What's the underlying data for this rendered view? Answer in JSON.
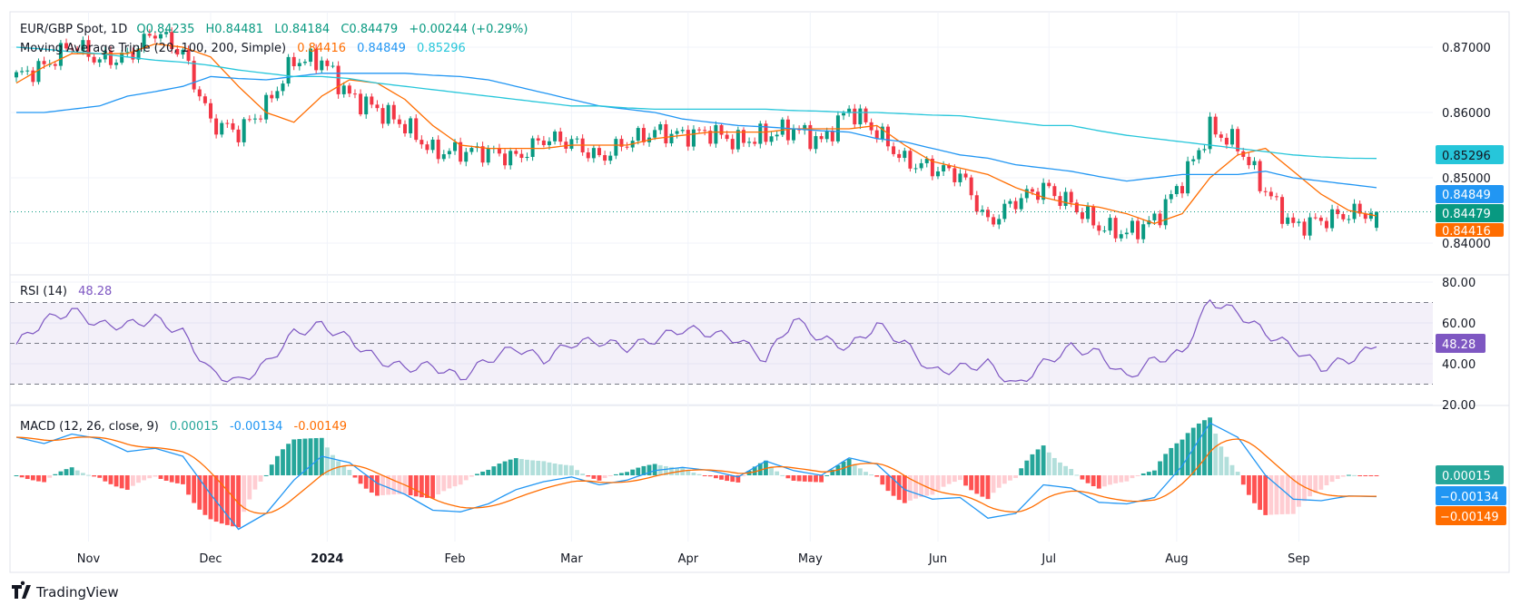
{
  "header": {
    "symbol": "EUR/GBP Spot, 1D",
    "open_label": "O",
    "open": "0.84235",
    "high_label": "H",
    "high": "0.84481",
    "low_label": "L",
    "low": "0.84184",
    "close_label": "C",
    "close": "0.84479",
    "change": "+0.00244 (+0.29%)"
  },
  "ma_legend": {
    "title": "Moving Average Triple (20, 100, 200, Simple)",
    "ma20": "0.84416",
    "ma100": "0.84849",
    "ma200": "0.85296"
  },
  "rsi_legend": {
    "title": "RSI (14)",
    "value": "48.28"
  },
  "macd_legend": {
    "title": "MACD (12, 26, close, 9)",
    "hist": "0.00015",
    "macd": "-0.00134",
    "signal": "-0.00149"
  },
  "price_tags": {
    "ma200": "0.85296",
    "ma100": "0.84849",
    "close": "0.84479",
    "ma20": "0.84416"
  },
  "rsi_tag": "48.28",
  "macd_tags": {
    "hist": "0.00015",
    "macd": "−0.00134",
    "signal": "−0.00149"
  },
  "brand": "TradingView",
  "colors": {
    "up": "#089981",
    "down": "#f23645",
    "ma20": "#ff6d00",
    "ma100": "#2196f3",
    "ma200": "#26c6da",
    "rsi": "#7e57c2",
    "macd": "#2196f3",
    "signal": "#ff6d00",
    "hist_up": "#26a69a",
    "hist_up_light": "#b2dfdb",
    "hist_down": "#ff5252",
    "hist_down_light": "#ffcdd2"
  },
  "chart_data": [
    {
      "type": "candlestick",
      "title": "EUR/GBP Spot, 1D",
      "interval": "weekly closes (Fridays), daily candles shown",
      "start_date": "2023-10-13",
      "end_date": "2024-09-20",
      "last_candle": {
        "open": 0.84235,
        "high": 0.84481,
        "low": 0.84184,
        "close": 0.84479
      },
      "y_ticks": [
        "0.84000",
        "0.85000",
        "0.86000",
        "0.87000"
      ],
      "ylim": [
        0.8365,
        0.8745
      ],
      "x_ticks": [
        {
          "label": "Nov",
          "date": "2023-11-01"
        },
        {
          "label": "Dec",
          "date": "2023-12-01"
        },
        {
          "label": "2024",
          "date": "2024-01-01"
        },
        {
          "label": "Feb",
          "date": "2024-02-01"
        },
        {
          "label": "Mar",
          "date": "2024-03-01"
        },
        {
          "label": "Apr",
          "date": "2024-04-01"
        },
        {
          "label": "May",
          "date": "2024-05-01"
        },
        {
          "label": "Jun",
          "date": "2024-06-03"
        },
        {
          "label": "Jul",
          "date": "2024-07-01"
        },
        {
          "label": "Aug",
          "date": "2024-08-01"
        },
        {
          "label": "Sep",
          "date": "2024-09-02"
        }
      ],
      "close": [
        0.8655,
        0.867,
        0.8705,
        0.868,
        0.8685,
        0.8725,
        0.869,
        0.8585,
        0.857,
        0.861,
        0.868,
        0.868,
        0.8625,
        0.8605,
        0.858,
        0.854,
        0.854,
        0.854,
        0.853,
        0.856,
        0.8555,
        0.853,
        0.8555,
        0.857,
        0.8565,
        0.857,
        0.8555,
        0.8565,
        0.8575,
        0.8555,
        0.8605,
        0.857,
        0.8525,
        0.8515,
        0.8505,
        0.843,
        0.8465,
        0.8485,
        0.846,
        0.8425,
        0.8415,
        0.8435,
        0.8495,
        0.8575,
        0.855,
        0.848,
        0.8425,
        0.8435,
        0.8445,
        0.84479
      ],
      "series": [
        {
          "name": "MA 20",
          "values": [
            0.8645,
            0.867,
            0.869,
            0.869,
            0.869,
            0.8705,
            0.87,
            0.8685,
            0.864,
            0.86,
            0.8585,
            0.8625,
            0.865,
            0.8645,
            0.862,
            0.858,
            0.855,
            0.8545,
            0.8545,
            0.8545,
            0.855,
            0.855,
            0.855,
            0.856,
            0.8565,
            0.857,
            0.857,
            0.857,
            0.8575,
            0.8575,
            0.8575,
            0.858,
            0.855,
            0.8525,
            0.8515,
            0.8505,
            0.8485,
            0.847,
            0.846,
            0.8455,
            0.8445,
            0.843,
            0.8445,
            0.85,
            0.8535,
            0.8545,
            0.851,
            0.8475,
            0.845,
            0.84416
          ]
        },
        {
          "name": "MA 100",
          "values": [
            0.86,
            0.86,
            0.8605,
            0.861,
            0.8625,
            0.8632,
            0.864,
            0.8655,
            0.8652,
            0.865,
            0.8655,
            0.866,
            0.866,
            0.866,
            0.866,
            0.8657,
            0.8655,
            0.865,
            0.864,
            0.863,
            0.862,
            0.861,
            0.8605,
            0.86,
            0.859,
            0.8585,
            0.858,
            0.8578,
            0.8575,
            0.8572,
            0.857,
            0.856,
            0.8555,
            0.8545,
            0.8535,
            0.853,
            0.852,
            0.8515,
            0.851,
            0.8502,
            0.8495,
            0.85,
            0.8505,
            0.8505,
            0.8505,
            0.851,
            0.85,
            0.8495,
            0.849,
            0.84849
          ]
        },
        {
          "name": "MA 200",
          "values": [
            0.87,
            0.8697,
            0.8693,
            0.869,
            0.8685,
            0.868,
            0.8677,
            0.8672,
            0.8665,
            0.866,
            0.8655,
            0.8655,
            0.8652,
            0.8645,
            0.864,
            0.8635,
            0.863,
            0.8625,
            0.862,
            0.8615,
            0.861,
            0.861,
            0.8607,
            0.8605,
            0.8605,
            0.8605,
            0.8605,
            0.8605,
            0.8603,
            0.8602,
            0.86,
            0.86,
            0.8598,
            0.8596,
            0.8595,
            0.859,
            0.8585,
            0.858,
            0.858,
            0.8572,
            0.8565,
            0.856,
            0.8555,
            0.855,
            0.8545,
            0.854,
            0.8535,
            0.8532,
            0.853,
            0.85296
          ]
        }
      ]
    },
    {
      "type": "line",
      "title": "RSI (14)",
      "ylim": [
        20,
        80
      ],
      "y_ticks": [
        "20.00",
        "40.00",
        "60.00",
        "80.00"
      ],
      "bands": [
        30,
        70
      ],
      "midline": 50,
      "values": [
        49.5,
        61,
        66,
        59,
        59,
        62,
        55,
        36,
        31,
        40,
        55,
        59,
        52,
        42,
        38,
        39,
        33,
        42,
        48,
        42,
        50,
        51,
        48,
        52,
        57,
        55,
        52,
        42,
        62,
        52,
        48,
        59,
        50,
        36,
        38,
        40,
        29,
        40,
        48,
        45,
        33,
        42,
        45,
        71,
        65,
        55,
        48,
        38,
        42,
        48.28
      ]
    },
    {
      "type": "bar+line",
      "title": "MACD (12, 26, close, 9)",
      "ylim": [
        -0.0042,
        0.0044
      ],
      "macd": [
        0.0024,
        0.002,
        0.0026,
        0.0023,
        0.0015,
        0.0017,
        0.0012,
        -0.0012,
        -0.0034,
        -0.0024,
        -0.0003,
        0.0012,
        0.0008,
        -0.0005,
        -0.0012,
        -0.0022,
        -0.0023,
        -0.0018,
        -0.0009,
        -0.0004,
        -0.0001,
        -0.0006,
        -0.0003,
        0.0003,
        0.0005,
        0.0003,
        -0.0001,
        0.0009,
        0.0003,
        0,
        0.0011,
        0.0007,
        -0.0009,
        -0.0015,
        -0.0014,
        -0.0027,
        -0.0024,
        -0.0006,
        -0.0008,
        -0.0017,
        -0.0018,
        -0.0014,
        0.0006,
        0.0033,
        0.0024,
        0,
        -0.0015,
        -0.0016,
        -0.0013,
        -0.00134
      ],
      "signal_period": 9
    }
  ]
}
